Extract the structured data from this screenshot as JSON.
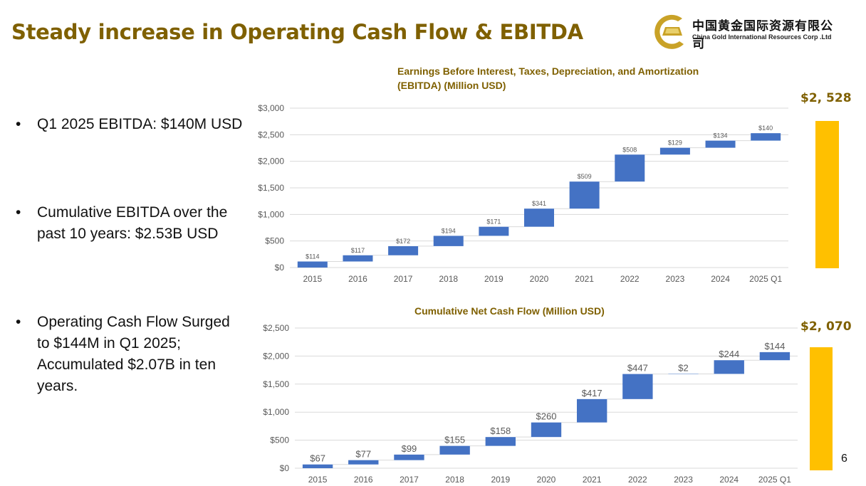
{
  "slide": {
    "title": "Steady increase in Operating Cash Flow & EBITDA",
    "page_number": "6",
    "logo": {
      "chinese_name": "中国黄金国际资源有限公司",
      "english_name": "China Gold International Resources Corp .Ltd"
    },
    "bullets": [
      {
        "text": "Q1 2025 EBITDA: $140M USD"
      },
      {
        "text": "Cumulative EBITDA over the past 10 years: $2.53B USD"
      },
      {
        "text": "Operating Cash Flow Surged to $144M in Q1 2025; Accumulated $2.07B in ten years."
      }
    ],
    "colors": {
      "title": "#7f6000",
      "bar": "#4472c4",
      "total_bar": "#ffc000"
    }
  },
  "chart_data": [
    {
      "type": "bar",
      "subtype": "waterfall",
      "title": "Earnings Before Interest, Taxes, Depreciation, and Amortization (EBITDA) (Million USD)",
      "categories": [
        "2015",
        "2016",
        "2017",
        "2018",
        "2019",
        "2020",
        "2021",
        "2022",
        "2023",
        "2024",
        "2025 Q1"
      ],
      "values": [
        114,
        117,
        172,
        194,
        171,
        341,
        509,
        508,
        129,
        134,
        140
      ],
      "data_labels": [
        "$114",
        "$117",
        "$172",
        "$194",
        "$171",
        "$341",
        "$509",
        "$508",
        "$129",
        "$134",
        "$140"
      ],
      "yticks": [
        "$0",
        "$500",
        "$1,000",
        "$1,500",
        "$2,000",
        "$2,500",
        "$3,000"
      ],
      "ylim": [
        0,
        3000
      ],
      "grid": true,
      "total_label": "$2, 528",
      "total_value": 2528
    },
    {
      "type": "bar",
      "subtype": "waterfall",
      "title": "Cumulative Net Cash Flow (Million USD)",
      "categories": [
        "2015",
        "2016",
        "2017",
        "2018",
        "2019",
        "2020",
        "2021",
        "2022",
        "2023",
        "2024",
        "2025 Q1"
      ],
      "values": [
        67,
        77,
        99,
        155,
        158,
        260,
        417,
        447,
        2,
        244,
        144
      ],
      "data_labels": [
        "$67",
        "$77",
        "$99",
        "$155",
        "$158",
        "$260",
        "$417",
        "$447",
        "$2",
        "$244",
        "$144"
      ],
      "yticks": [
        "$0",
        "$500",
        "$1,000",
        "$1,500",
        "$2,000",
        "$2,500"
      ],
      "ylim": [
        0,
        2500
      ],
      "grid": true,
      "total_label": "$2, 070",
      "total_value": 2070
    }
  ]
}
